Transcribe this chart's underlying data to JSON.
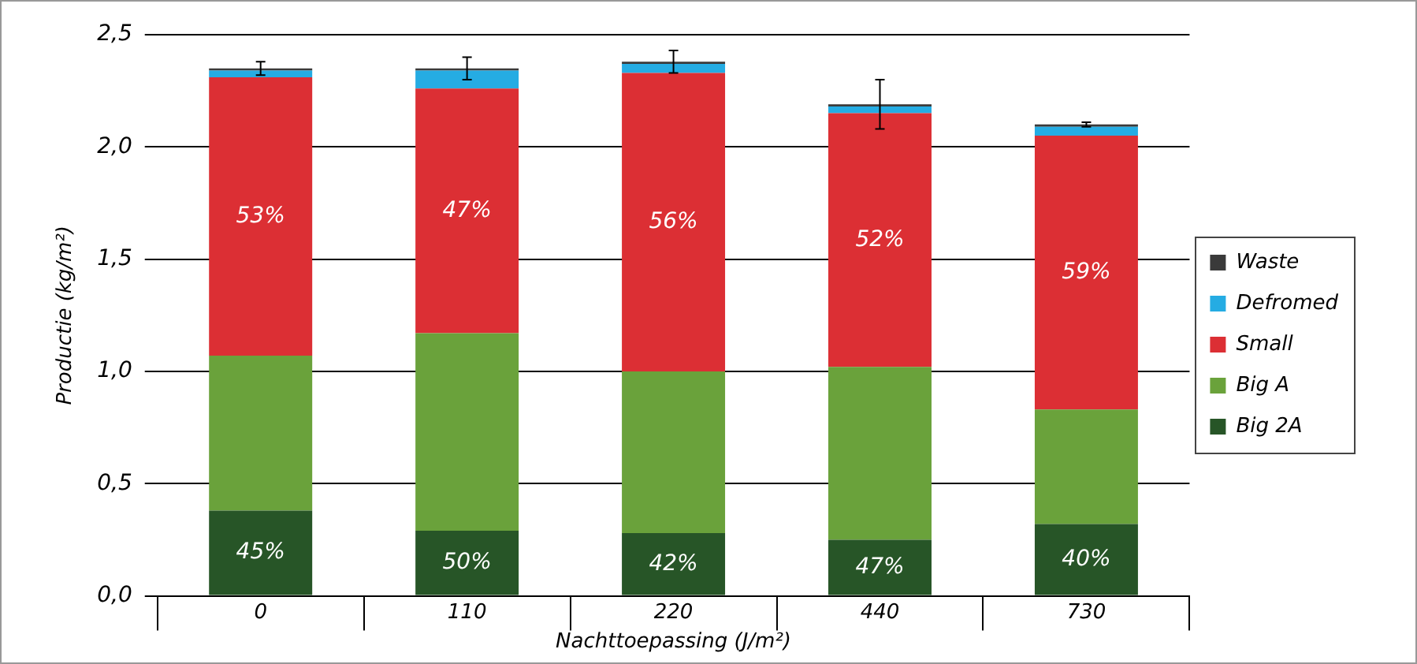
{
  "chart_data": {
    "type": "bar",
    "stacked": true,
    "xlabel": "Nachttoepassing (J/m²)",
    "ylabel": "Productie (kg/m²)",
    "categories": [
      "0",
      "110",
      "220",
      "440",
      "730"
    ],
    "series": [
      {
        "name": "Big 2A",
        "color": "#275527",
        "values": [
          0.38,
          0.29,
          0.28,
          0.25,
          0.32
        ]
      },
      {
        "name": "Big A",
        "color": "#6aa23b",
        "values": [
          0.69,
          0.88,
          0.72,
          0.77,
          0.51
        ]
      },
      {
        "name": "Small",
        "color": "#dc2f34",
        "values": [
          1.24,
          1.09,
          1.33,
          1.13,
          1.22
        ]
      },
      {
        "name": "Defromed",
        "color": "#25ace3",
        "values": [
          0.03,
          0.08,
          0.04,
          0.03,
          0.04
        ]
      },
      {
        "name": "Waste",
        "color": "#3a3a3a",
        "values": [
          0.01,
          0.01,
          0.01,
          0.01,
          0.01
        ],
        "errors": [
          0.03,
          0.05,
          0.05,
          0.11,
          0.01
        ]
      }
    ],
    "ylim": [
      0,
      2.5
    ],
    "yticks": [
      {
        "value": 0,
        "label": "0,0"
      },
      {
        "value": 0.5,
        "label": "0,5"
      },
      {
        "value": 1,
        "label": "1,0"
      },
      {
        "value": 1.5,
        "label": "1,5"
      },
      {
        "value": 2,
        "label": "2,0"
      },
      {
        "value": 2.5,
        "label": "2,5"
      }
    ],
    "grid": "y",
    "legend": "right",
    "annotations": [
      "45%",
      "50%",
      "42%",
      "47%",
      "40%",
      "53%",
      "47%",
      "56%",
      "52%",
      "59%"
    ]
  }
}
